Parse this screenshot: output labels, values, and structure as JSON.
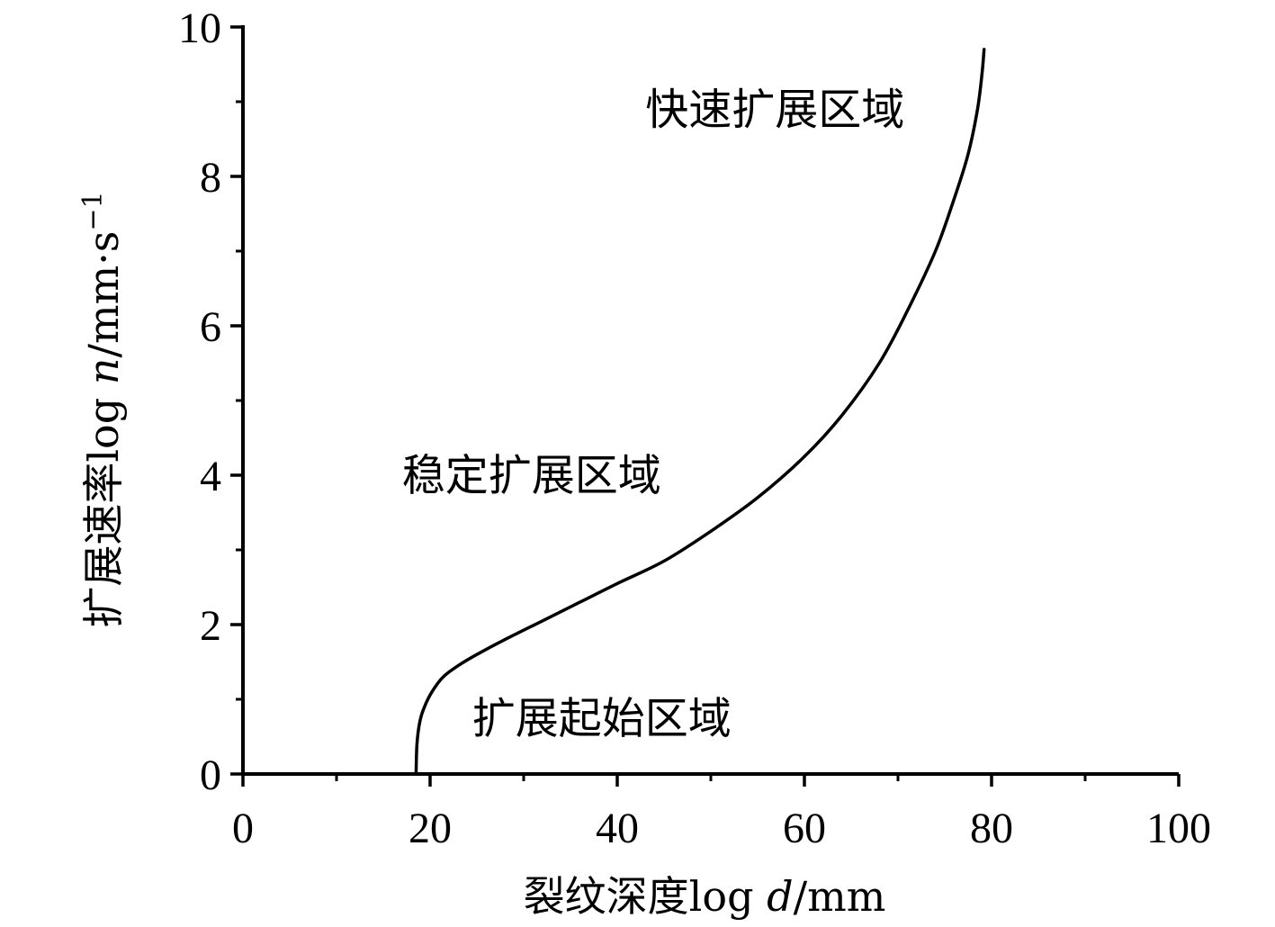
{
  "chart_data": {
    "type": "line",
    "xlim": [
      0,
      100
    ],
    "ylim": [
      0,
      10
    ],
    "xticks": [
      0,
      20,
      40,
      60,
      80,
      100
    ],
    "yticks": [
      0,
      2,
      4,
      6,
      8,
      10
    ],
    "xlabel": {
      "prefix": "裂纹深度log ",
      "var": "d",
      "suffix": "/mm"
    },
    "ylabel": {
      "prefix": "扩展速率log ",
      "var": "n",
      "unit": "/mm·s",
      "exponent": "−1"
    },
    "annotations": [
      {
        "text": "快速扩展区域",
        "x": 43,
        "y": 8.7
      },
      {
        "text": "稳定扩展区域",
        "x": 17,
        "y": 3.8
      },
      {
        "text": "扩展起始区域",
        "x": 24.5,
        "y": 0.55
      }
    ],
    "series": [
      {
        "x": [
          18.5,
          18.6,
          18.9,
          19.4,
          20.2,
          21.4,
          23,
          25,
          28,
          32,
          36,
          40,
          45,
          50,
          55,
          60,
          64,
          68,
          71,
          74,
          76,
          77.5,
          78.5,
          79,
          79.2
        ],
        "y": [
          0.0,
          0.4,
          0.7,
          0.9,
          1.1,
          1.3,
          1.45,
          1.6,
          1.8,
          2.05,
          2.3,
          2.55,
          2.85,
          3.25,
          3.7,
          4.25,
          4.8,
          5.5,
          6.2,
          7.0,
          7.7,
          8.3,
          8.9,
          9.4,
          9.7
        ]
      }
    ]
  }
}
